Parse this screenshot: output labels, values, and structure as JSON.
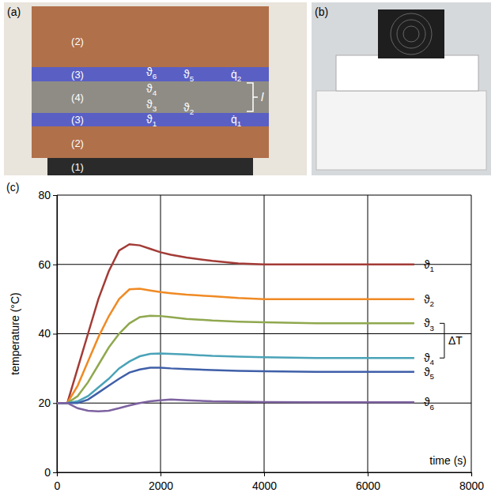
{
  "panels": [
    {
      "label": "(a)",
      "layers": [
        "(2)",
        "(3)",
        "(4)",
        "(3)",
        "(2)",
        "(1)"
      ],
      "sensors": [
        "ϑ6",
        "ϑ5",
        "ϑ4",
        "ϑ3",
        "ϑ2",
        "ϑ1"
      ],
      "heat_flux": [
        "q̇2",
        "q̇1"
      ],
      "thickness": "l"
    },
    {
      "label": "(b)"
    }
  ],
  "chart_data": {
    "type": "line",
    "label": "(c)",
    "x_label": "time (s)",
    "y_label": "temperature (°C)",
    "x": [
      0,
      200,
      400,
      600,
      800,
      1000,
      1200,
      1400,
      1600,
      1800,
      2000,
      2200,
      2500,
      3000,
      3500,
      4000,
      5000,
      6000,
      6900
    ],
    "series": [
      {
        "name": "ϑ1",
        "color": "#a33b36",
        "values": [
          20,
          20,
          30,
          40,
          50,
          58,
          64,
          65.8,
          65.5,
          64.5,
          63.5,
          62.8,
          62,
          61,
          60.3,
          60,
          60,
          60,
          60
        ]
      },
      {
        "name": "ϑ2",
        "color": "#f08a24",
        "values": [
          20,
          20,
          25,
          32,
          39,
          45,
          50,
          52.8,
          53,
          52.5,
          52,
          51.7,
          51.3,
          50.8,
          50.3,
          50,
          50,
          50,
          50
        ]
      },
      {
        "name": "ϑ3",
        "color": "#8fa84e",
        "values": [
          20,
          20,
          22,
          26,
          31,
          36,
          40,
          43,
          44.8,
          45.2,
          45.1,
          44.8,
          44.3,
          43.8,
          43.5,
          43.3,
          43,
          43,
          43
        ]
      },
      {
        "name": "ϑ4",
        "color": "#4aa3b8",
        "values": [
          20,
          20,
          20.5,
          22,
          24.5,
          27,
          30,
          32,
          33.5,
          34.2,
          34.3,
          34.2,
          34,
          33.6,
          33.4,
          33.2,
          33,
          33,
          33
        ]
      },
      {
        "name": "ϑ5",
        "color": "#3f5fa8",
        "values": [
          20,
          20,
          20,
          21,
          23,
          25,
          27,
          28.8,
          29.7,
          30.2,
          30.2,
          30,
          29.8,
          29.5,
          29.3,
          29.2,
          29,
          29,
          29
        ]
      },
      {
        "name": "ϑ6",
        "color": "#7d62a0",
        "values": [
          20,
          20,
          18.5,
          17.8,
          17.6,
          17.8,
          18.5,
          19.3,
          20,
          20.5,
          20.8,
          21,
          20.8,
          20.5,
          20.4,
          20.3,
          20.2,
          20.2,
          20.2
        ]
      }
    ],
    "annotations": [
      {
        "text": "ΔT",
        "y": [
          43,
          33
        ]
      }
    ],
    "xlim": [
      0,
      8000
    ],
    "xticks": [
      0,
      2000,
      4000,
      6000,
      8000
    ],
    "ylim": [
      0,
      80
    ],
    "yticks": [
      0,
      20,
      40,
      60,
      80
    ],
    "grid": true
  }
}
